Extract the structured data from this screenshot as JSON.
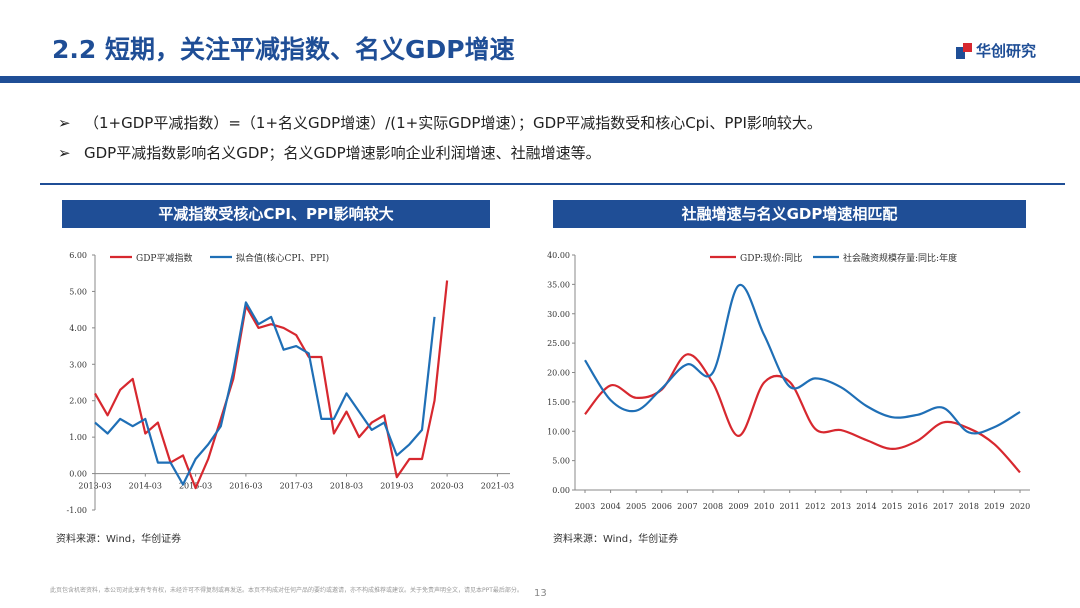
{
  "header": {
    "title": "2.2 短期，关注平减指数、名义GDP增速",
    "logo_text": "华创研究"
  },
  "bullets": [
    {
      "arrow": "➢",
      "text": "（1+GDP平减指数）=（1+名义GDP增速）/(1+实际GDP增速）；GDP平减指数受和核心Cpi、PPI影响较大。"
    },
    {
      "arrow": "➢",
      "text": "GDP平减指数影响名义GDP；名义GDP增速影响企业利润增速、社融增速等。"
    }
  ],
  "colors": {
    "brand": "#1f4e96",
    "red_series": "#d7282f",
    "blue_series": "#1f6fb6"
  },
  "left_panel": {
    "title": "平减指数受核心CPI、PPI影响较大",
    "source": "资料来源：Wind，华创证券"
  },
  "right_panel": {
    "title": "社融增速与名义GDP增速相匹配",
    "source": "资料来源：Wind，华创证券"
  },
  "footer": {
    "disclaimer": "此页包含机密资料，本公司对此享有专有权，未经许可不得复制或再发送。本页不构成对任何产品的要约或邀请，亦不构成推荐或建议。关于免责声明全文，请见本PPT最后部分。",
    "page": "13"
  },
  "chart_data": [
    {
      "type": "line",
      "title": "平减指数受核心CPI、PPI影响较大",
      "x_tick_labels": [
        "2013-03",
        "2014-03",
        "2015-03",
        "2016-03",
        "2017-03",
        "2018-03",
        "2019-03",
        "2020-03",
        "2021-03"
      ],
      "y_tick_labels": [
        "-1.00",
        "0.00",
        "1.00",
        "2.00",
        "3.00",
        "4.00",
        "5.00",
        "6.00"
      ],
      "ylim": [
        -1,
        6
      ],
      "x_quarter_range": [
        0,
        33
      ],
      "series": [
        {
          "name": "GDP平减指数",
          "color": "#d7282f",
          "x": [
            0,
            1,
            2,
            3,
            4,
            5,
            6,
            7,
            8,
            9,
            10,
            11,
            12,
            13,
            14,
            15,
            16,
            17,
            18,
            19,
            20,
            21,
            22,
            23,
            24,
            25,
            26,
            27,
            28,
            29,
            30,
            31,
            32
          ],
          "values": [
            2.2,
            1.6,
            2.3,
            2.6,
            1.1,
            1.4,
            0.3,
            0.5,
            -0.4,
            0.4,
            1.5,
            2.6,
            4.6,
            4.0,
            4.1,
            4.0,
            3.8,
            3.2,
            3.2,
            1.1,
            1.7,
            1.0,
            1.4,
            1.6,
            -0.1,
            0.4,
            0.4,
            2.0,
            5.3,
            null,
            null,
            null,
            null
          ]
        },
        {
          "name": "拟合值(核心CPI、PPI)",
          "color": "#1f6fb6",
          "x": [
            0,
            1,
            2,
            3,
            4,
            5,
            6,
            7,
            8,
            9,
            10,
            11,
            12,
            13,
            14,
            15,
            16,
            17,
            18,
            19,
            20,
            21,
            22,
            23,
            24,
            25,
            26,
            27,
            28,
            29,
            30,
            31,
            32
          ],
          "values": [
            1.4,
            1.1,
            1.5,
            1.3,
            1.5,
            0.3,
            0.3,
            -0.3,
            0.4,
            0.8,
            1.3,
            2.8,
            4.7,
            4.1,
            4.3,
            3.4,
            3.5,
            3.3,
            1.5,
            1.5,
            2.2,
            1.7,
            1.2,
            1.4,
            0.5,
            0.8,
            1.2,
            4.3,
            null,
            null,
            null,
            null,
            null
          ]
        }
      ]
    },
    {
      "type": "line",
      "title": "社融增速与名义GDP增速相匹配",
      "categories": [
        "2003",
        "2004",
        "2005",
        "2006",
        "2007",
        "2008",
        "2009",
        "2010",
        "2011",
        "2012",
        "2013",
        "2014",
        "2015",
        "2016",
        "2017",
        "2018",
        "2019",
        "2020"
      ],
      "y_tick_labels": [
        "0.00",
        "5.00",
        "10.00",
        "15.00",
        "20.00",
        "25.00",
        "30.00",
        "35.00",
        "40.00"
      ],
      "ylim": [
        0,
        40
      ],
      "series": [
        {
          "name": "GDP:现价:同比",
          "color": "#d7282f",
          "values": [
            12.9,
            17.8,
            15.7,
            17.1,
            23.1,
            18.2,
            9.2,
            18.3,
            18.4,
            10.4,
            10.2,
            8.5,
            7.0,
            8.4,
            11.5,
            10.5,
            7.8,
            3.0
          ]
        },
        {
          "name": "社会融资规模存量:同比:年度",
          "color": "#1f6fb6",
          "values": [
            22.1,
            15.3,
            13.5,
            17.3,
            21.4,
            20.0,
            34.8,
            26.4,
            17.6,
            19.0,
            17.5,
            14.3,
            12.4,
            12.8,
            14.0,
            9.8,
            10.7,
            13.3
          ]
        }
      ]
    }
  ]
}
